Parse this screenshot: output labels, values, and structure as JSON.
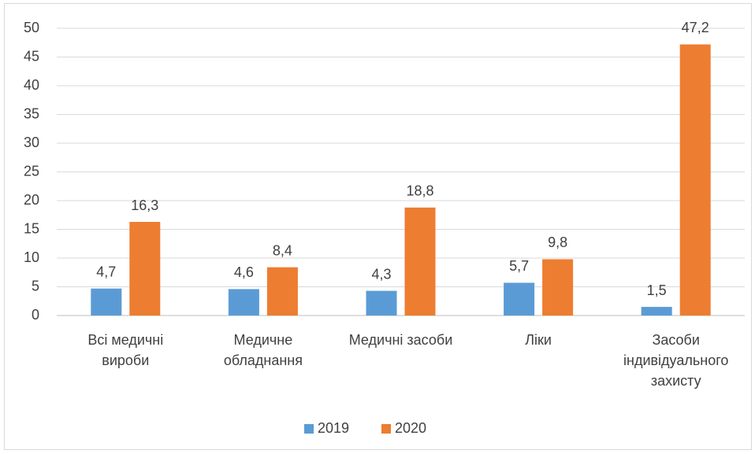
{
  "chart_data": {
    "type": "bar",
    "categories": [
      "Всі медичні\nвироби",
      "Медичне\nобладнання",
      "Медичні засоби",
      "Ліки",
      "Засоби\nіндивідуального\nзахисту"
    ],
    "series": [
      {
        "name": "2019",
        "color": "#5b9bd5",
        "values": [
          4.7,
          4.6,
          4.3,
          5.7,
          1.5
        ],
        "value_labels": [
          "4,7",
          "4,6",
          "4,3",
          "5,7",
          "1,5"
        ]
      },
      {
        "name": "2020",
        "color": "#ed7d31",
        "values": [
          16.3,
          8.4,
          18.8,
          9.8,
          47.2
        ],
        "value_labels": [
          "16,3",
          "8,4",
          "18,8",
          "9,8",
          "47,2"
        ]
      }
    ],
    "ylim": [
      0,
      50
    ],
    "yticks": [
      0,
      5,
      10,
      15,
      20,
      25,
      30,
      35,
      40,
      45,
      50
    ],
    "grid": true,
    "legend": "bottom"
  }
}
